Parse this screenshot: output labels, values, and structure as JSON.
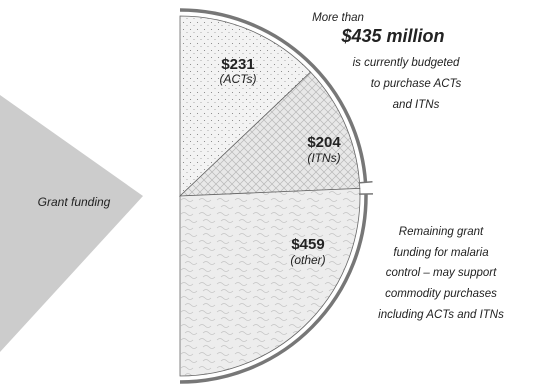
{
  "chart_data": {
    "type": "pie",
    "left_label": "Grant funding",
    "slices": [
      {
        "value": 231,
        "value_label": "$231",
        "sub_label": "(ACTs)",
        "color": "#f1f1f1",
        "pattern": "stipple"
      },
      {
        "value": 204,
        "value_label": "$204",
        "sub_label": "(ITNs)",
        "color": "#e6e6e6",
        "pattern": "crosshatch"
      },
      {
        "value": 459,
        "value_label": "$459",
        "sub_label": "(other)",
        "color": "#ececec",
        "pattern": "squiggle"
      }
    ],
    "annotation_top": {
      "line1": "More than",
      "line2": "$435 million",
      "line3": "is currently budgeted",
      "line4": "to purchase ACTs",
      "line5": "and ITNs"
    },
    "annotation_bottom": {
      "line1": "Remaining grant",
      "line2": "funding for malaria",
      "line3": "control – may support",
      "line4": "commodity purchases",
      "line5": "including ACTs and ITNs"
    },
    "colors": {
      "arrow": "#cccccc",
      "stroke": "#666666",
      "bracket": "#777777"
    }
  }
}
